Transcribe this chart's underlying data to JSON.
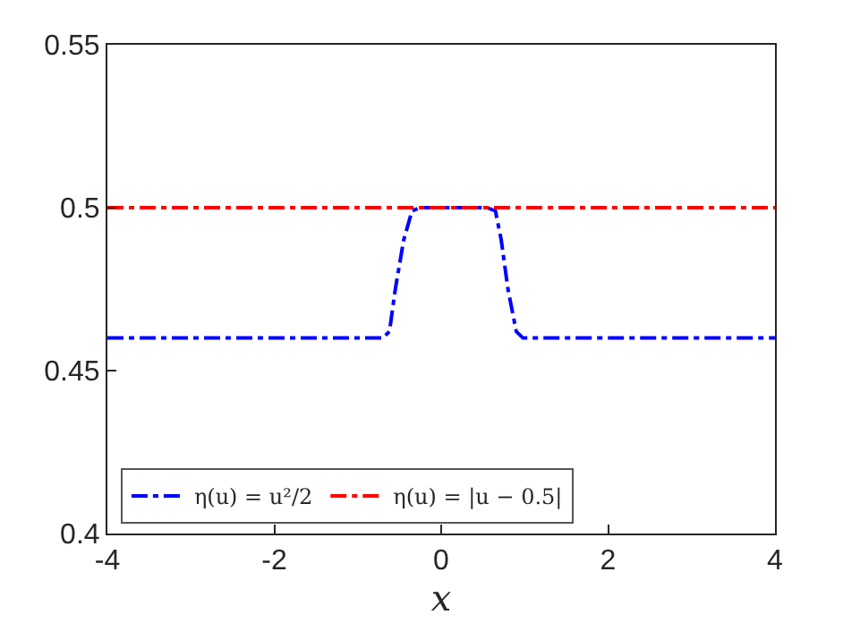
{
  "chart_data": {
    "type": "line",
    "xlabel": "x",
    "xlim": [
      -4,
      4
    ],
    "xticks": [
      -4,
      -2,
      0,
      2,
      4
    ],
    "ylim": [
      0.4,
      0.55
    ],
    "yticks": [
      0.4,
      0.45,
      0.5,
      0.55
    ],
    "grid": false,
    "legend": "bottom left",
    "marker": "none",
    "series": [
      {
        "name": "η(u) = u²/2",
        "color": "#0000ff",
        "line_style": "dashdot",
        "x": [
          -4,
          -0.7,
          -0.62,
          -0.55,
          -0.45,
          -0.35,
          -0.25,
          0.55,
          0.65,
          0.72,
          0.8,
          0.9,
          0.98,
          4
        ],
        "values": [
          0.46,
          0.46,
          0.462,
          0.475,
          0.49,
          0.499,
          0.5,
          0.5,
          0.499,
          0.49,
          0.475,
          0.462,
          0.46,
          0.46
        ]
      },
      {
        "name": "η(u) = |u − 0.5|",
        "color": "#ff0000",
        "line_style": "dashdot",
        "x": [
          -4,
          4
        ],
        "values": [
          0.5,
          0.5
        ]
      }
    ]
  }
}
